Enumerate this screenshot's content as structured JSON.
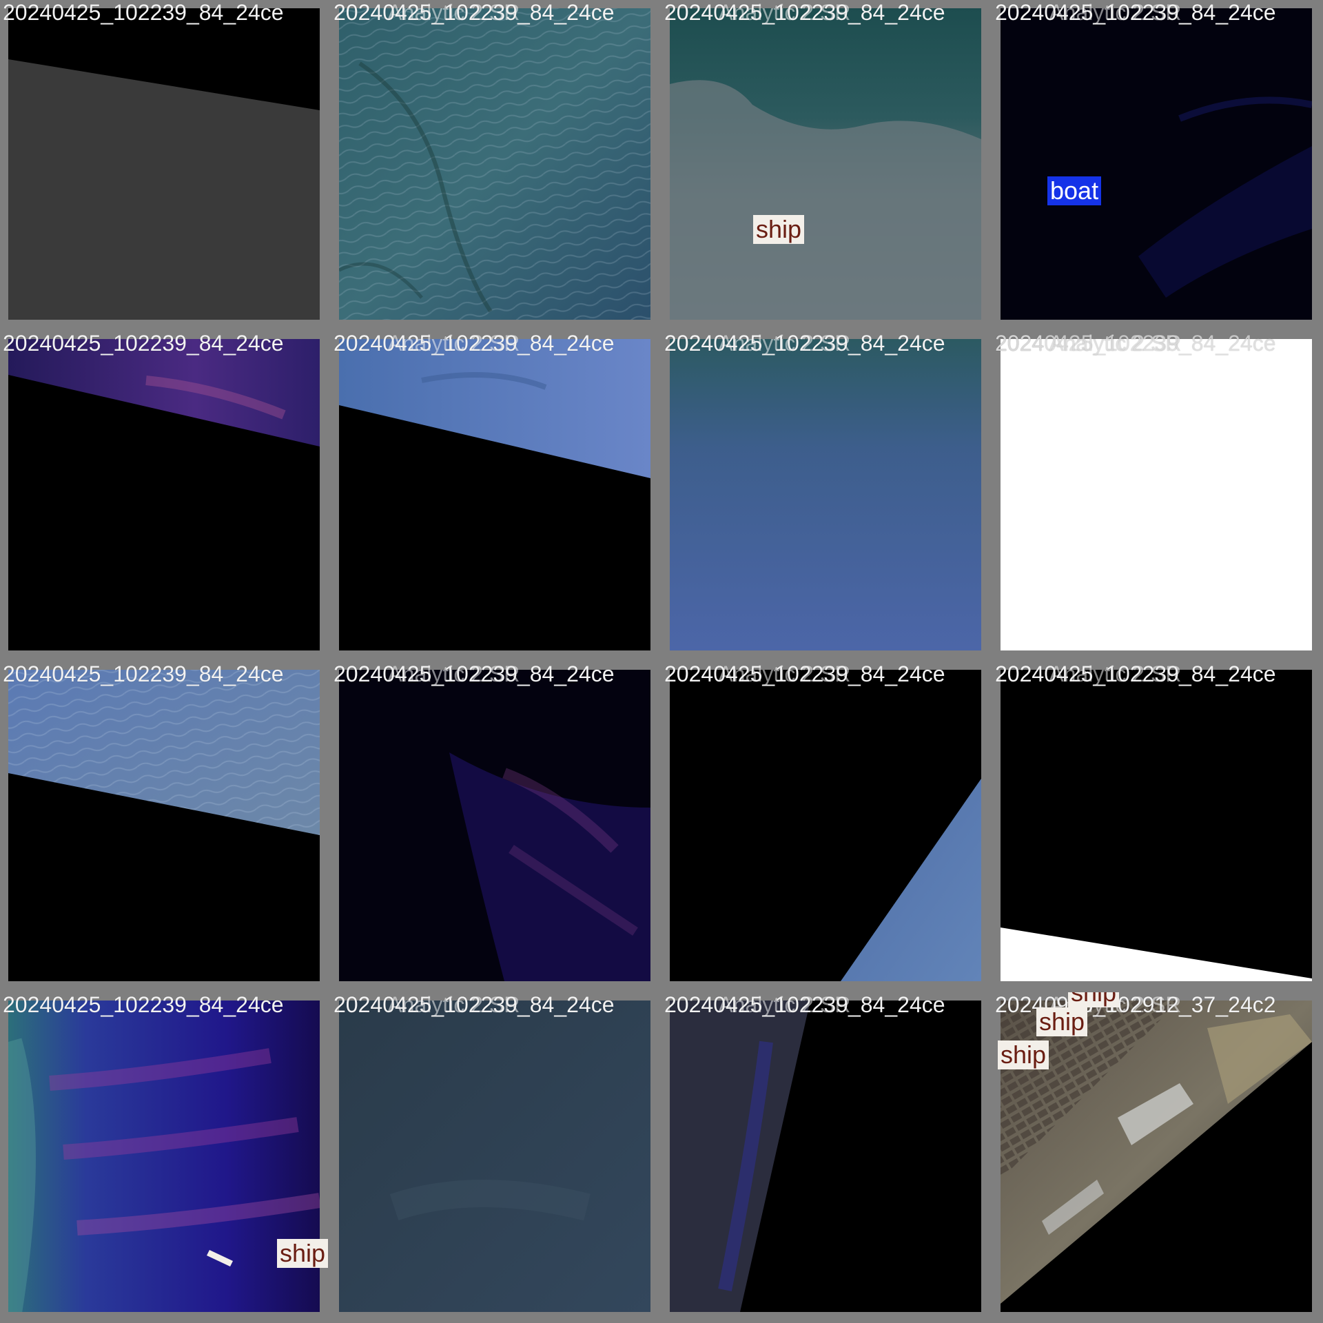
{
  "tiles": [
    {
      "captions": [
        "20240425_102239_84_24ce"
      ],
      "labels": []
    },
    {
      "captions": [
        "20240425_102239_84_24ce",
        "2024 Analytic 2 SR"
      ],
      "labels": []
    },
    {
      "captions": [
        "20240425_102239_84_24ce",
        "2024 Analytic 2 SR"
      ],
      "labels": [
        {
          "text": "ship",
          "class": "ship"
        }
      ]
    },
    {
      "captions": [
        "20240425_102239_84_24ce",
        "2024 Analytic 2 SR"
      ],
      "labels": [
        {
          "text": "boat",
          "class": "boat"
        }
      ]
    },
    {
      "captions": [
        "20240425_102239_84_24ce"
      ],
      "labels": []
    },
    {
      "captions": [
        "20240425_102239_84_24ce",
        "2024 Analytic 2 SR"
      ],
      "labels": []
    },
    {
      "captions": [
        "20240425_102239_84_24ce",
        "2024 Analytic 2 SR"
      ],
      "labels": []
    },
    {
      "captions": [
        "20240425_102239_84_24ce",
        "2024 Analytic 2 SR"
      ],
      "labels": []
    },
    {
      "captions": [
        "20240425_102239_84_24ce"
      ],
      "labels": []
    },
    {
      "captions": [
        "20240425_102239_84_24ce",
        "2024 Analytic 2 SR"
      ],
      "labels": []
    },
    {
      "captions": [
        "20240425_102239_84_24ce",
        "2024 Analytic 2 SR"
      ],
      "labels": []
    },
    {
      "captions": [
        "20240425_102239_84_24ce",
        "2024 Analytic 2 SR"
      ],
      "labels": []
    },
    {
      "captions": [
        "20240425_102239_84_24ce"
      ],
      "labels": [
        {
          "text": "ship",
          "class": "ship"
        }
      ]
    },
    {
      "captions": [
        "20240425_102239_84_24ce",
        "2024 Analytic 2 SR"
      ],
      "labels": []
    },
    {
      "captions": [
        "20240425_102239_84_24ce",
        "2024 Analytic 2 SR"
      ],
      "labels": []
    },
    {
      "captions": [
        "20240925_102912_37_24c2",
        "2024 Analytic 2 SR"
      ],
      "labels": [
        {
          "text": "ship",
          "class": "ship"
        },
        {
          "text": "ship",
          "class": "ship"
        },
        {
          "text": "ship",
          "class": "ship"
        }
      ]
    }
  ],
  "colors": {
    "border": "#7f7f7f",
    "ship_label_bg": "#f3efe9",
    "ship_label_text": "#6a1d12",
    "boat_label_bg": "#1533e8",
    "boat_label_text": "#ffffff"
  }
}
